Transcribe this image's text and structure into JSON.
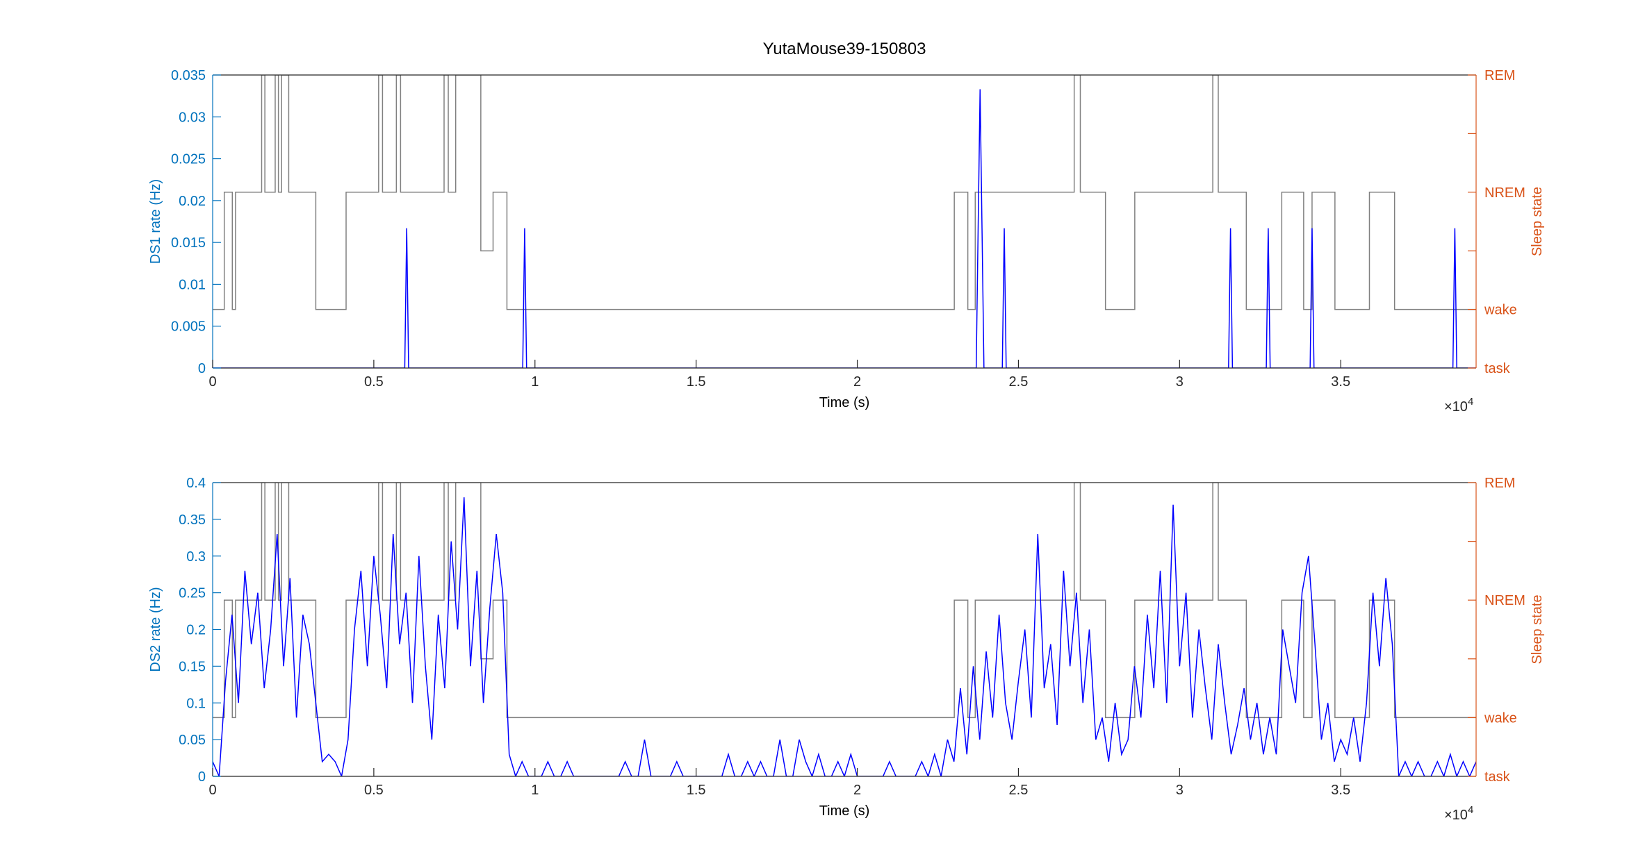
{
  "chart_data": [
    {
      "type": "line",
      "title": "YutaMouse39-150803",
      "xlabel": "Time (s)",
      "ylabel": "DS1 rate (Hz)",
      "y2label": "Sleep state",
      "x_exponent": {
        "base": "×10",
        "power": "4"
      },
      "xlim": [
        0,
        39200
      ],
      "xticks": [
        0,
        {
          "value": 5000,
          "label": "0.5"
        },
        {
          "value": 10000,
          "label": "1"
        },
        {
          "value": 15000,
          "label": "1.5"
        },
        {
          "value": 20000,
          "label": "2"
        },
        {
          "value": 25000,
          "label": "2.5"
        },
        {
          "value": 30000,
          "label": "3"
        },
        {
          "value": 35000,
          "label": "3.5"
        }
      ],
      "ylim": [
        0,
        0.035
      ],
      "yticks": [
        0,
        0.005,
        0.01,
        0.015,
        0.02,
        0.025,
        0.03,
        0.035
      ],
      "y2lim": [
        0,
        5
      ],
      "y2ticks": [
        {
          "value": 0,
          "label": "task"
        },
        {
          "value": 1,
          "label": "wake"
        },
        {
          "value": 2,
          "label": null
        },
        {
          "value": 3,
          "label": "NREM"
        },
        {
          "value": 4,
          "label": null
        },
        {
          "value": 5,
          "label": "REM"
        }
      ],
      "y_color": "#0072bd",
      "y2_color": "#d95319",
      "series": [
        {
          "color": "#808080",
          "axis": "y2",
          "step": true,
          "x": [
            0,
            360,
            610,
            710,
            1520,
            1620,
            1940,
            2040,
            2140,
            2360,
            3200,
            4140,
            5150,
            5270,
            5700,
            5830,
            7180,
            7310,
            7540,
            8320,
            8700,
            9130,
            23010,
            23430,
            23660,
            26730,
            26920,
            27700,
            28610,
            31030,
            31200,
            32070,
            33170,
            33850,
            34110,
            34820,
            35890,
            36670,
            39200
          ],
          "values": [
            1,
            3,
            1,
            3,
            5,
            3,
            5,
            3,
            5,
            3,
            1,
            3,
            5,
            3,
            5,
            3,
            5,
            3,
            5,
            2,
            3,
            1,
            3,
            1,
            3,
            5,
            3,
            1,
            3,
            5,
            3,
            1,
            3,
            1,
            3,
            1,
            3,
            1,
            1
          ]
        },
        {
          "color": "#0000ff",
          "x": [
            0,
            5960,
            6020,
            6080,
            9620,
            9680,
            9740,
            23690,
            23750,
            23810,
            23870,
            23930,
            24500,
            24560,
            24620,
            31520,
            31580,
            31640,
            32690,
            32750,
            32810,
            34050,
            34110,
            34170,
            38480,
            38540,
            38600,
            39200
          ],
          "values": [
            0,
            0,
            0.0167,
            0,
            0,
            0.0167,
            0,
            0,
            0.0167,
            0.0333,
            0.0167,
            0,
            0,
            0.0167,
            0,
            0,
            0.0167,
            0,
            0,
            0.0167,
            0,
            0,
            0.0167,
            0,
            0,
            0.0167,
            0,
            0
          ]
        }
      ]
    },
    {
      "type": "line",
      "xlabel": "Time (s)",
      "ylabel": "DS2 rate (Hz)",
      "y2label": "Sleep state",
      "x_exponent": {
        "base": "×10",
        "power": "4"
      },
      "xlim": [
        0,
        39200
      ],
      "xticks": [
        0,
        {
          "value": 5000,
          "label": "0.5"
        },
        {
          "value": 10000,
          "label": "1"
        },
        {
          "value": 15000,
          "label": "1.5"
        },
        {
          "value": 20000,
          "label": "2"
        },
        {
          "value": 25000,
          "label": "2.5"
        },
        {
          "value": 30000,
          "label": "3"
        },
        {
          "value": 35000,
          "label": "3.5"
        }
      ],
      "ylim": [
        0,
        0.4
      ],
      "yticks": [
        0,
        0.05,
        0.1,
        0.15,
        0.2,
        0.25,
        0.3,
        0.35,
        0.4
      ],
      "y2lim": [
        0,
        5
      ],
      "y2ticks": [
        {
          "value": 0,
          "label": "task"
        },
        {
          "value": 1,
          "label": "wake"
        },
        {
          "value": 2,
          "label": null
        },
        {
          "value": 3,
          "label": "NREM"
        },
        {
          "value": 4,
          "label": null
        },
        {
          "value": 5,
          "label": "REM"
        }
      ],
      "y_color": "#0072bd",
      "y2_color": "#d95319",
      "series": [
        {
          "color": "#808080",
          "axis": "y2",
          "step": true,
          "x": [
            0,
            360,
            610,
            710,
            1520,
            1620,
            1940,
            2040,
            2140,
            2360,
            3200,
            4140,
            5150,
            5270,
            5700,
            5830,
            7180,
            7310,
            7540,
            8320,
            8700,
            9130,
            23010,
            23430,
            23660,
            26730,
            26920,
            27700,
            28610,
            31030,
            31200,
            32070,
            33170,
            33850,
            34110,
            34820,
            35890,
            36670,
            39200
          ],
          "values": [
            1,
            3,
            1,
            3,
            5,
            3,
            5,
            3,
            5,
            3,
            1,
            3,
            5,
            3,
            5,
            3,
            5,
            3,
            5,
            2,
            3,
            1,
            3,
            1,
            3,
            5,
            3,
            1,
            3,
            5,
            3,
            1,
            3,
            1,
            3,
            1,
            3,
            1,
            1
          ]
        },
        {
          "color": "#0000ff",
          "x": [
            0,
            200,
            400,
            600,
            800,
            1000,
            1200,
            1400,
            1600,
            1800,
            2000,
            2200,
            2400,
            2600,
            2800,
            3000,
            3200,
            3400,
            3600,
            3800,
            4000,
            4200,
            4400,
            4600,
            4800,
            5000,
            5200,
            5400,
            5600,
            5800,
            6000,
            6200,
            6400,
            6600,
            6800,
            7000,
            7200,
            7400,
            7600,
            7800,
            8000,
            8200,
            8400,
            8600,
            8800,
            9000,
            9200,
            9400,
            9600,
            9800,
            10000,
            10200,
            10400,
            10600,
            10800,
            11000,
            11200,
            11400,
            11600,
            11800,
            12000,
            12200,
            12400,
            12600,
            12800,
            13000,
            13200,
            13400,
            13600,
            13800,
            14000,
            14200,
            14400,
            14600,
            14800,
            15000,
            15200,
            15400,
            15600,
            15800,
            16000,
            16200,
            16400,
            16600,
            16800,
            17000,
            17200,
            17400,
            17600,
            17800,
            18000,
            18200,
            18400,
            18600,
            18800,
            19000,
            19200,
            19400,
            19600,
            19800,
            20000,
            20200,
            20400,
            20600,
            20800,
            21000,
            21200,
            21400,
            21600,
            21800,
            22000,
            22200,
            22400,
            22600,
            22800,
            23000,
            23200,
            23400,
            23600,
            23800,
            24000,
            24200,
            24400,
            24600,
            24800,
            25000,
            25200,
            25400,
            25600,
            25800,
            26000,
            26200,
            26400,
            26600,
            26800,
            27000,
            27200,
            27400,
            27600,
            27800,
            28000,
            28200,
            28400,
            28600,
            28800,
            29000,
            29200,
            29400,
            29600,
            29800,
            30000,
            30200,
            30400,
            30600,
            30800,
            31000,
            31200,
            31400,
            31600,
            31800,
            32000,
            32200,
            32400,
            32600,
            32800,
            33000,
            33200,
            33400,
            33600,
            33800,
            34000,
            34200,
            34400,
            34600,
            34800,
            35000,
            35200,
            35400,
            35600,
            35800,
            36000,
            36200,
            36400,
            36600,
            36800,
            37000,
            37200,
            37400,
            37600,
            37800,
            38000,
            38200,
            38400,
            38600,
            38800,
            39000,
            39200
          ],
          "values": [
            0.02,
            0,
            0.13,
            0.22,
            0.1,
            0.28,
            0.18,
            0.25,
            0.12,
            0.2,
            0.33,
            0.15,
            0.27,
            0.08,
            0.22,
            0.18,
            0.1,
            0.02,
            0.03,
            0.02,
            0,
            0.05,
            0.2,
            0.28,
            0.15,
            0.3,
            0.22,
            0.12,
            0.33,
            0.18,
            0.25,
            0.1,
            0.3,
            0.15,
            0.05,
            0.22,
            0.12,
            0.32,
            0.2,
            0.38,
            0.15,
            0.28,
            0.1,
            0.23,
            0.33,
            0.25,
            0.03,
            0,
            0.02,
            0,
            0,
            0,
            0.02,
            0,
            0,
            0.02,
            0,
            0,
            0,
            0,
            0,
            0,
            0,
            0,
            0.02,
            0,
            0,
            0.05,
            0,
            0,
            0,
            0,
            0.02,
            0,
            0,
            0,
            0,
            0,
            0,
            0,
            0.03,
            0,
            0,
            0.02,
            0,
            0.02,
            0,
            0,
            0.05,
            0,
            0,
            0.05,
            0.02,
            0,
            0.03,
            0,
            0,
            0.02,
            0,
            0.03,
            0,
            0,
            0,
            0,
            0,
            0.02,
            0,
            0,
            0,
            0,
            0.02,
            0,
            0.03,
            0,
            0.05,
            0.02,
            0.12,
            0.03,
            0.15,
            0.05,
            0.17,
            0.08,
            0.22,
            0.1,
            0.05,
            0.13,
            0.2,
            0.08,
            0.33,
            0.12,
            0.18,
            0.07,
            0.28,
            0.15,
            0.25,
            0.1,
            0.2,
            0.05,
            0.08,
            0.02,
            0.1,
            0.03,
            0.05,
            0.15,
            0.08,
            0.22,
            0.12,
            0.28,
            0.1,
            0.37,
            0.15,
            0.25,
            0.08,
            0.2,
            0.12,
            0.05,
            0.18,
            0.1,
            0.03,
            0.07,
            0.12,
            0.05,
            0.1,
            0.03,
            0.08,
            0.03,
            0.2,
            0.15,
            0.1,
            0.25,
            0.3,
            0.18,
            0.05,
            0.1,
            0.02,
            0.05,
            0.03,
            0.08,
            0.02,
            0.1,
            0.25,
            0.15,
            0.27,
            0.18,
            0,
            0.02,
            0,
            0.02,
            0,
            0,
            0.02,
            0,
            0.03,
            0,
            0.02,
            0,
            0.02
          ]
        }
      ]
    }
  ]
}
